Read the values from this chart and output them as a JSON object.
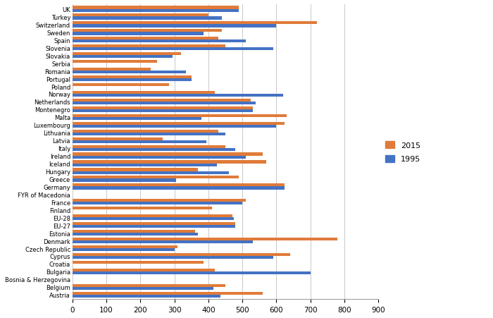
{
  "countries": [
    "UK",
    "Turkey",
    "Switzerland",
    "Sweden",
    "Spain",
    "Slovenia",
    "Slovakia",
    "Serbia",
    "Romania",
    "Portugal",
    "Poland",
    "Norway",
    "Netherlands",
    "Montenegro",
    "Malta",
    "Luxembourg",
    "Lithuania",
    "Latvia",
    "Italy",
    "Ireland",
    "Iceland",
    "Hungary",
    "Greece",
    "Germany",
    "FYR of Macedonia",
    "France",
    "Finland",
    "EU-28",
    "EU-27",
    "Estonia",
    "Denmark",
    "Czech Republic",
    "Cyprus",
    "Croatia",
    "Bulgaria",
    "Bosnia & Herzegovina",
    "Belgium",
    "Austria"
  ],
  "values_2015": [
    490,
    400,
    720,
    440,
    430,
    450,
    320,
    250,
    230,
    350,
    285,
    420,
    525,
    530,
    630,
    625,
    430,
    265,
    450,
    560,
    570,
    370,
    490,
    625,
    0,
    510,
    410,
    470,
    480,
    360,
    780,
    310,
    640,
    385,
    420,
    0,
    450,
    560
  ],
  "values_1995": [
    490,
    440,
    600,
    385,
    510,
    590,
    295,
    0,
    335,
    350,
    0,
    620,
    540,
    530,
    380,
    600,
    450,
    395,
    480,
    510,
    425,
    460,
    305,
    625,
    0,
    500,
    0,
    475,
    480,
    370,
    530,
    300,
    590,
    0,
    700,
    0,
    415,
    435
  ],
  "color_2015": "#E07B39",
  "color_1995": "#4472C4",
  "xlim": [
    0,
    900
  ],
  "xticks": [
    0,
    100,
    200,
    300,
    400,
    500,
    600,
    700,
    800,
    900
  ],
  "bar_height": 0.38,
  "legend_2015": "2015",
  "legend_1995": "1995",
  "ytick_fontsize": 6.0,
  "xtick_fontsize": 7.5
}
